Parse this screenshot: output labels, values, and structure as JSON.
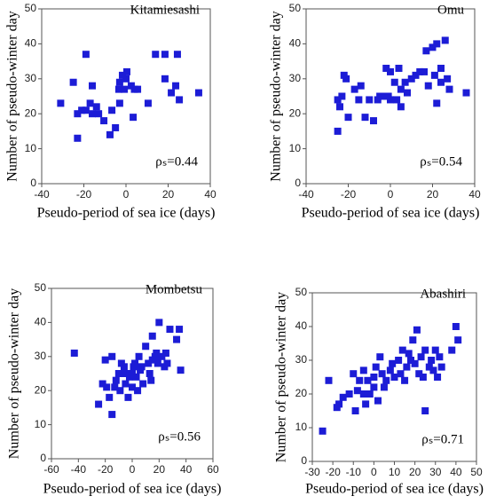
{
  "chart_data": [
    {
      "type": "scatter",
      "title": "Kitamiesashi",
      "x_label": "Pseudo-period of sea ice (days)",
      "y_label": "Number of pseudo-winter day",
      "annotation": "ρₛ=0.44",
      "color": "#1c1cd6",
      "x": [
        -31,
        -25,
        -23,
        -23,
        -21,
        -19,
        -19,
        -17,
        -16,
        -16,
        -14,
        -13,
        -10.5,
        -7.6,
        -6.7,
        -5,
        -3.4,
        -3,
        -3,
        -1.7,
        -0.8,
        0.4,
        0,
        2.5,
        3.4,
        4,
        5.5,
        10.5,
        14,
        18.5,
        18.5,
        21.5,
        23.6,
        24.4,
        25.3,
        34.5
      ],
      "values": [
        23,
        29,
        20,
        13,
        21,
        37,
        21,
        23,
        28,
        20,
        22,
        20,
        18,
        14,
        21,
        16,
        27,
        29,
        23,
        31,
        27,
        32,
        30,
        28,
        19,
        27,
        27,
        23,
        37,
        37,
        30,
        26,
        28,
        37,
        24,
        26
      ],
      "xlim": [
        -40,
        40
      ],
      "ylim": [
        0,
        50
      ],
      "xticks": [
        -40,
        -20,
        0,
        20,
        40
      ],
      "yticks": [
        0,
        10,
        20,
        30,
        40,
        50
      ]
    },
    {
      "type": "scatter",
      "title": "Omu",
      "x_label": "Pseudo-period of sea ice (days)",
      "y_label": "Number of pseudo-winter day",
      "annotation": "ρₛ=0.54",
      "color": "#1c1cd6",
      "x": [
        -25,
        -25,
        -24,
        -23,
        -22,
        -21,
        -20,
        -17,
        -15,
        -14,
        -12,
        -10,
        -8,
        -6,
        -5,
        -3,
        -2,
        -1,
        0,
        0,
        2,
        3,
        4,
        5,
        5,
        7,
        8,
        10,
        12,
        14,
        16,
        17,
        18,
        20,
        21,
        22,
        22,
        24,
        24,
        26,
        27,
        28,
        36
      ],
      "values": [
        15,
        24,
        22,
        25,
        31,
        30,
        19,
        27,
        24,
        28,
        19,
        24,
        18,
        24,
        25,
        25,
        33,
        25,
        24,
        32,
        29,
        24,
        33,
        22,
        27,
        29,
        26,
        30,
        31,
        32,
        32,
        38,
        28,
        39,
        31,
        23,
        40,
        33,
        29,
        41,
        30,
        27,
        26
      ],
      "xlim": [
        -40,
        40
      ],
      "ylim": [
        0,
        50
      ],
      "xticks": [
        -40,
        -20,
        0,
        20,
        40
      ],
      "yticks": [
        0,
        10,
        20,
        30,
        40,
        50
      ]
    },
    {
      "type": "scatter",
      "title": "Mombetsu",
      "x_label": "Pseudo-period of sea ice (days)",
      "y_label": "Number of pseudo-winter day",
      "annotation": "ρₛ=0.56",
      "color": "#1c1cd6",
      "x": [
        -43,
        -25,
        -22,
        -20,
        -19,
        -17,
        -15,
        -15,
        -13,
        -12,
        -10,
        -9,
        -8,
        -6,
        -5,
        -3,
        -2,
        0,
        0,
        1,
        2,
        3,
        4,
        5,
        6,
        7,
        8,
        10,
        12,
        13,
        14,
        15,
        17,
        18,
        19,
        20,
        22,
        24,
        25,
        26,
        28,
        33,
        35,
        36,
        15,
        -5
      ],
      "values": [
        31,
        16,
        22,
        29,
        21,
        18,
        13,
        30,
        21,
        23,
        25,
        20,
        28,
        27,
        22,
        18,
        24,
        25,
        21,
        27,
        28,
        24,
        20,
        30,
        26,
        27,
        22,
        33,
        28,
        25,
        23,
        36,
        30,
        31,
        28,
        40,
        30,
        27,
        31,
        28,
        38,
        35,
        38,
        26,
        29,
        25
      ],
      "xlim": [
        -60,
        60
      ],
      "ylim": [
        0,
        50
      ],
      "xticks": [
        -60,
        -40,
        -20,
        0,
        20,
        40,
        60
      ],
      "yticks": [
        0,
        10,
        20,
        30,
        40,
        50
      ]
    },
    {
      "type": "scatter",
      "title": "Abashiri",
      "x_label": "Pseudo-period of sea ice (days)",
      "y_label": "Number of pseudo-winter day",
      "annotation": "ρₛ=0.71",
      "color": "#1c1cd6",
      "x": [
        -25,
        -22,
        -18,
        -17,
        -15,
        -12,
        -10,
        -9,
        -8,
        -7,
        -5,
        -5,
        -4,
        -3,
        -2,
        0,
        0,
        1,
        2,
        3,
        4,
        5,
        6,
        8,
        9,
        10,
        12,
        13,
        14,
        15,
        16,
        17,
        18,
        19,
        20,
        21,
        22,
        23,
        24,
        25,
        25,
        27,
        28,
        29,
        30,
        31,
        32,
        33,
        38,
        40,
        41
      ],
      "values": [
        9,
        24,
        16,
        17,
        19,
        20,
        26,
        15,
        21,
        24,
        27,
        20,
        17,
        24,
        20,
        25,
        22,
        28,
        18,
        31,
        26,
        22,
        24,
        27,
        29,
        25,
        30,
        26,
        33,
        24,
        28,
        32,
        30,
        36,
        29,
        39,
        26,
        31,
        25,
        15,
        33,
        28,
        30,
        27,
        33,
        25,
        31,
        28,
        33,
        40,
        36
      ],
      "xlim": [
        -30,
        50
      ],
      "ylim": [
        0,
        50
      ],
      "xticks": [
        -30,
        -20,
        -10,
        0,
        10,
        20,
        30,
        40,
        50
      ],
      "yticks": [
        0,
        10,
        20,
        30,
        40,
        50
      ]
    }
  ]
}
